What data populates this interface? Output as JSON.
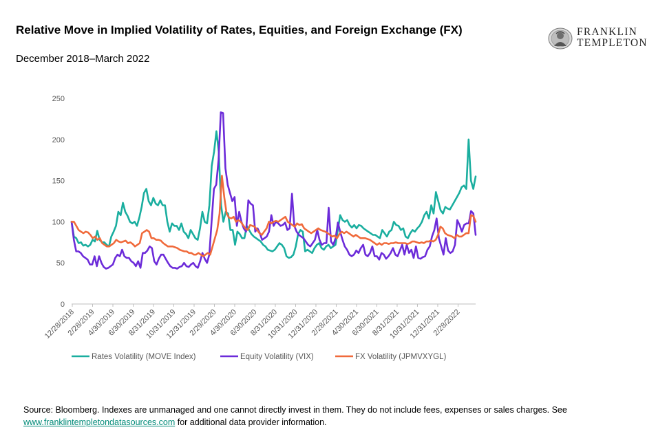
{
  "header": {
    "title": "Relative Move in Implied Volatility of Rates, Equities, and Foreign Exchange (FX)",
    "subtitle": "December 2018–March 2022"
  },
  "logo": {
    "line1": "FRANKLIN",
    "line2": "TEMPLETON"
  },
  "footer": {
    "source_text": "Source: Bloomberg. Indexes are unmanaged and one cannot directly invest in them. They do not include fees, expenses or sales charges. See",
    "link_text": "www.franklintempletondatasources.com",
    "source_suffix": "for additional data provider information."
  },
  "colors": {
    "rates": "#1aae9f",
    "equity": "#6c2bd9",
    "fx": "#f06a3b",
    "axis": "#bfbfbf",
    "link": "#008a78"
  },
  "chart_data": {
    "type": "line",
    "ylim": [
      0,
      250
    ],
    "yticks": [
      0,
      50,
      100,
      150,
      200,
      250
    ],
    "x_tick_labels": [
      "12/28/2018",
      "2/28/2019",
      "4/30/2019",
      "6/30/2019",
      "8/31/2019",
      "10/31/2019",
      "12/31/2019",
      "2/29/2020",
      "4/30/2020",
      "6/30/2020",
      "8/31/2020",
      "10/31/2020",
      "12/31/2020",
      "2/28/2021",
      "4/30/2021",
      "6/30/2021",
      "8/31/2021",
      "10/31/2021",
      "12/31/2021",
      "2/28/2022"
    ],
    "x_index_note": "one point per week, starting 12/28/2018",
    "grid": false,
    "legend_position": "bottom",
    "series": [
      {
        "name": "Rates Volatility (MOVE Index)",
        "key": "rates",
        "values": [
          100,
          82,
          80,
          74,
          75,
          71,
          72,
          70,
          72,
          78,
          76,
          89,
          78,
          75,
          75,
          72,
          70,
          82,
          88,
          95,
          112,
          108,
          123,
          112,
          107,
          100,
          98,
          100,
          95,
          105,
          118,
          135,
          140,
          125,
          120,
          129,
          122,
          120,
          126,
          120,
          120,
          100,
          88,
          98,
          95,
          95,
          90,
          98,
          88,
          85,
          80,
          90,
          85,
          80,
          78,
          92,
          112,
          100,
          98,
          120,
          168,
          185,
          210,
          185,
          120,
          100,
          112,
          110,
          90,
          90,
          72,
          88,
          85,
          80,
          80,
          95,
          90,
          85,
          82,
          80,
          78,
          76,
          72,
          70,
          66,
          65,
          64,
          66,
          70,
          74,
          72,
          68,
          58,
          56,
          57,
          60,
          70,
          85,
          90,
          88,
          64,
          66,
          64,
          62,
          68,
          72,
          74,
          68,
          66,
          70,
          72,
          68,
          70,
          72,
          90,
          108,
          102,
          100,
          102,
          96,
          93,
          96,
          92,
          96,
          95,
          92,
          90,
          88,
          86,
          84,
          84,
          82,
          80,
          90,
          86,
          82,
          88,
          90,
          100,
          96,
          95,
          90,
          92,
          82,
          80,
          86,
          90,
          88,
          92,
          95,
          100,
          108,
          112,
          104,
          120,
          110,
          136,
          125,
          114,
          110,
          118,
          116,
          115,
          120,
          125,
          130,
          135,
          142,
          144,
          140,
          200,
          150,
          140,
          155
        ]
      },
      {
        "name": "Equity Volatility (VIX)",
        "key": "equity",
        "values": [
          100,
          78,
          64,
          64,
          62,
          58,
          56,
          54,
          48,
          48,
          58,
          46,
          58,
          50,
          45,
          43,
          44,
          46,
          48,
          56,
          60,
          58,
          66,
          58,
          56,
          56,
          52,
          50,
          46,
          52,
          44,
          62,
          62,
          65,
          70,
          68,
          52,
          48,
          55,
          60,
          60,
          55,
          50,
          46,
          44,
          44,
          43,
          45,
          46,
          50,
          46,
          45,
          48,
          50,
          46,
          44,
          52,
          62,
          55,
          50,
          60,
          100,
          140,
          145,
          175,
          233,
          232,
          165,
          145,
          135,
          125,
          130,
          95,
          112,
          100,
          92,
          88,
          126,
          122,
          120,
          88,
          92,
          86,
          78,
          80,
          82,
          88,
          108,
          95,
          100,
          98,
          95,
          96,
          99,
          90,
          92,
          134,
          95,
          88,
          84,
          82,
          80,
          76,
          72,
          70,
          74,
          78,
          90,
          78,
          72,
          74,
          74,
          117,
          76,
          72,
          80,
          99,
          88,
          78,
          70,
          66,
          60,
          58,
          60,
          65,
          62,
          68,
          72,
          60,
          58,
          62,
          70,
          58,
          58,
          54,
          62,
          60,
          55,
          58,
          62,
          68,
          60,
          58,
          65,
          72,
          60,
          72,
          62,
          66,
          56,
          70,
          56,
          55,
          57,
          58,
          66,
          70,
          82,
          90,
          104,
          80,
          70,
          60,
          80,
          65,
          62,
          64,
          72,
          102,
          96,
          88,
          96,
          98,
          98,
          113,
          110,
          84
        ]
      },
      {
        "name": "FX Volatility (JPMVXYGL)",
        "key": "fx",
        "values": [
          100,
          100,
          95,
          90,
          88,
          86,
          88,
          87,
          84,
          80,
          82,
          78,
          80,
          74,
          72,
          70,
          70,
          72,
          74,
          78,
          76,
          75,
          76,
          77,
          74,
          75,
          73,
          70,
          72,
          74,
          86,
          88,
          90,
          88,
          80,
          80,
          78,
          78,
          77,
          74,
          72,
          70,
          70,
          70,
          69,
          68,
          66,
          65,
          64,
          64,
          62,
          62,
          60,
          60,
          62,
          60,
          58,
          60,
          62,
          60,
          70,
          80,
          90,
          110,
          156,
          130,
          110,
          105,
          104,
          106,
          100,
          102,
          100,
          96,
          92,
          90,
          96,
          95,
          94,
          90,
          86,
          84,
          88,
          92,
          100,
          98,
          100,
          101,
          100,
          102,
          104,
          106,
          100,
          98,
          96,
          94,
          98,
          96,
          97,
          92,
          90,
          88,
          86,
          88,
          90,
          92,
          90,
          89,
          88,
          86,
          84,
          82,
          83,
          80,
          85,
          88,
          86,
          88,
          86,
          84,
          82,
          84,
          82,
          80,
          80,
          80,
          79,
          78,
          76,
          74,
          72,
          74,
          72,
          74,
          74,
          73,
          74,
          74,
          75,
          74,
          74,
          74,
          74,
          73,
          74,
          76,
          76,
          75,
          74,
          75,
          74,
          76,
          76,
          77,
          76,
          78,
          84,
          94,
          92,
          86,
          84,
          83,
          82,
          80,
          84,
          82,
          82,
          84,
          86,
          86,
          108,
          107,
          100
        ]
      }
    ]
  }
}
